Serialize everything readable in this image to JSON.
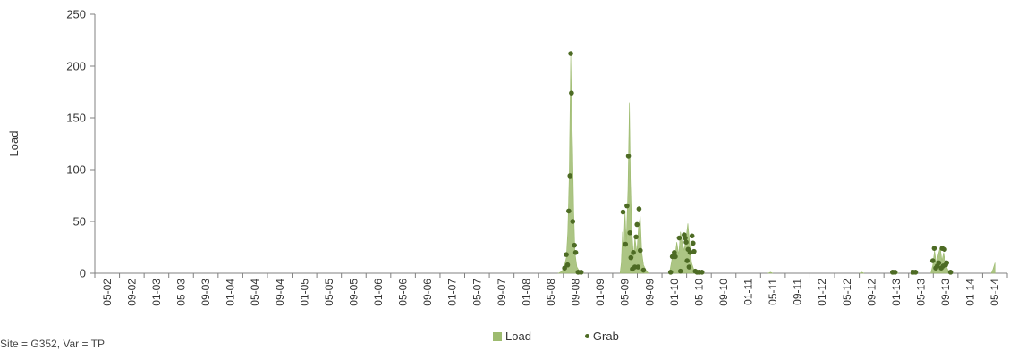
{
  "footnote": "Site = G352, Var = TP",
  "legend": {
    "load_label": "Load",
    "grab_label": "Grab"
  },
  "colors": {
    "load": "#9dbb6f",
    "grab": "#4d6b24",
    "axis": "#808080"
  },
  "chart_data": {
    "type": "area",
    "ylabel": "Load",
    "xlabel": "",
    "ylim": [
      0,
      250
    ],
    "yticks": [
      0,
      50,
      100,
      150,
      200,
      250
    ],
    "grid": false,
    "legend_position": "bottom",
    "x_categories": [
      "05-02",
      "09-02",
      "01-03",
      "05-03",
      "09-03",
      "01-04",
      "05-04",
      "09-04",
      "01-05",
      "05-05",
      "09-05",
      "01-06",
      "05-06",
      "09-06",
      "01-07",
      "05-07",
      "09-07",
      "01-08",
      "05-08",
      "09-08",
      "01-09",
      "05-09",
      "09-09",
      "01-10",
      "05-10",
      "09-10",
      "01-11",
      "05-11",
      "09-11",
      "01-12",
      "05-12",
      "09-12",
      "01-13",
      "05-13",
      "09-13",
      "01-14",
      "05-14"
    ],
    "series": [
      {
        "name": "Load",
        "type": "area",
        "points": [
          [
            18.3,
            0
          ],
          [
            18.45,
            2
          ],
          [
            18.55,
            8
          ],
          [
            18.62,
            15
          ],
          [
            18.68,
            40
          ],
          [
            18.74,
            95
          ],
          [
            18.8,
            210
          ],
          [
            18.84,
            160
          ],
          [
            18.88,
            115
          ],
          [
            18.92,
            60
          ],
          [
            18.97,
            20
          ],
          [
            19.05,
            6
          ],
          [
            19.15,
            2
          ],
          [
            19.3,
            0
          ],
          [
            20.8,
            0
          ],
          [
            20.85,
            10
          ],
          [
            20.9,
            40
          ],
          [
            20.95,
            25
          ],
          [
            21.0,
            60
          ],
          [
            21.05,
            30
          ],
          [
            21.12,
            80
          ],
          [
            21.18,
            165
          ],
          [
            21.22,
            90
          ],
          [
            21.28,
            40
          ],
          [
            21.35,
            15
          ],
          [
            21.4,
            35
          ],
          [
            21.48,
            20
          ],
          [
            21.55,
            45
          ],
          [
            21.62,
            55
          ],
          [
            21.68,
            20
          ],
          [
            21.75,
            8
          ],
          [
            21.85,
            3
          ],
          [
            21.95,
            0
          ],
          [
            22.8,
            0
          ],
          [
            22.88,
            10
          ],
          [
            22.95,
            20
          ],
          [
            23.02,
            15
          ],
          [
            23.1,
            30
          ],
          [
            23.18,
            18
          ],
          [
            23.25,
            40
          ],
          [
            23.32,
            30
          ],
          [
            23.4,
            22
          ],
          [
            23.48,
            35
          ],
          [
            23.55,
            48
          ],
          [
            23.62,
            30
          ],
          [
            23.7,
            10
          ],
          [
            23.8,
            3
          ],
          [
            23.95,
            0
          ],
          [
            26.8,
            0
          ],
          [
            26.9,
            1
          ],
          [
            27.0,
            0
          ],
          [
            30.5,
            0
          ],
          [
            30.6,
            1
          ],
          [
            30.7,
            0
          ],
          [
            31.85,
            0
          ],
          [
            31.92,
            3
          ],
          [
            32.0,
            1
          ],
          [
            32.1,
            0
          ],
          [
            32.7,
            0
          ],
          [
            32.78,
            2
          ],
          [
            32.85,
            0
          ],
          [
            33.4,
            0
          ],
          [
            33.48,
            8
          ],
          [
            33.55,
            22
          ],
          [
            33.62,
            10
          ],
          [
            33.7,
            18
          ],
          [
            33.78,
            25
          ],
          [
            33.85,
            12
          ],
          [
            33.92,
            20
          ],
          [
            34.0,
            8
          ],
          [
            34.1,
            3
          ],
          [
            34.25,
            0
          ],
          [
            35.85,
            0
          ],
          [
            35.92,
            4
          ],
          [
            36.0,
            10
          ]
        ]
      },
      {
        "name": "Grab",
        "type": "scatter",
        "points": [
          [
            18.55,
            5
          ],
          [
            18.62,
            18
          ],
          [
            18.67,
            8
          ],
          [
            18.72,
            60
          ],
          [
            18.77,
            94
          ],
          [
            18.8,
            212
          ],
          [
            18.83,
            174
          ],
          [
            18.88,
            50
          ],
          [
            18.95,
            27
          ],
          [
            19.0,
            20
          ],
          [
            19.1,
            1
          ],
          [
            19.22,
            1
          ],
          [
            20.92,
            59
          ],
          [
            21.02,
            28
          ],
          [
            21.08,
            65
          ],
          [
            21.14,
            113
          ],
          [
            21.2,
            39
          ],
          [
            21.24,
            15
          ],
          [
            21.3,
            4
          ],
          [
            21.34,
            20
          ],
          [
            21.4,
            6
          ],
          [
            21.45,
            35
          ],
          [
            21.49,
            47
          ],
          [
            21.53,
            6
          ],
          [
            21.57,
            62
          ],
          [
            21.62,
            22
          ],
          [
            21.75,
            3
          ],
          [
            22.85,
            1
          ],
          [
            22.92,
            16
          ],
          [
            23.0,
            20
          ],
          [
            23.04,
            16
          ],
          [
            23.2,
            34
          ],
          [
            23.25,
            2
          ],
          [
            23.4,
            37
          ],
          [
            23.44,
            34
          ],
          [
            23.48,
            30
          ],
          [
            23.52,
            12
          ],
          [
            23.56,
            23
          ],
          [
            23.6,
            6
          ],
          [
            23.64,
            20
          ],
          [
            23.72,
            36
          ],
          [
            23.76,
            29
          ],
          [
            23.8,
            21
          ],
          [
            23.85,
            2
          ],
          [
            23.92,
            1
          ],
          [
            24.0,
            1
          ],
          [
            24.12,
            1
          ],
          [
            31.85,
            1
          ],
          [
            31.95,
            1
          ],
          [
            32.68,
            1
          ],
          [
            32.78,
            1
          ],
          [
            33.48,
            12
          ],
          [
            33.54,
            24
          ],
          [
            33.6,
            5
          ],
          [
            33.66,
            7
          ],
          [
            33.72,
            10
          ],
          [
            33.82,
            5
          ],
          [
            33.86,
            24
          ],
          [
            33.9,
            7
          ],
          [
            33.96,
            23
          ],
          [
            34.0,
            8
          ],
          [
            34.04,
            10
          ],
          [
            34.2,
            1
          ]
        ]
      }
    ]
  }
}
